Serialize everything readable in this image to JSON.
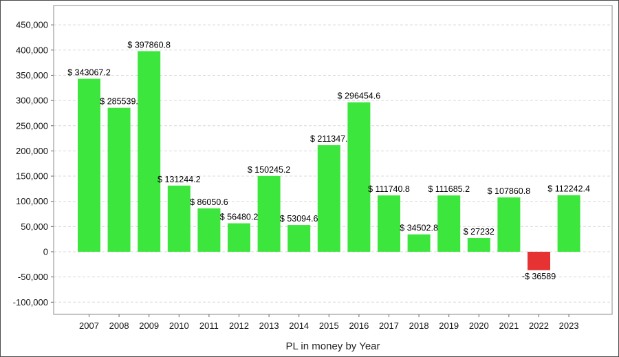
{
  "colors": {
    "positive": "#3ce63c",
    "negative": "#e63232",
    "grid": "#d8d8d8",
    "plot_border": "#888888",
    "background": "#ffffff"
  },
  "chart_data": {
    "type": "bar",
    "xlabel": "PL in money by Year",
    "ylabel": "",
    "ylim": [
      -120000,
      460000
    ],
    "y_ticks": [
      450000,
      400000,
      350000,
      300000,
      250000,
      200000,
      150000,
      100000,
      50000,
      0,
      -50000,
      -100000
    ],
    "y_tick_labels": [
      "450,000",
      "400,000",
      "350,000",
      "300,000",
      "250,000",
      "200,000",
      "150,000",
      "100,000",
      "50,000",
      "0",
      "-50,000",
      "-100,000"
    ],
    "grid": true,
    "categories": [
      "2007",
      "2008",
      "2009",
      "2010",
      "2011",
      "2012",
      "2013",
      "2014",
      "2015",
      "2016",
      "2017",
      "2018",
      "2019",
      "2020",
      "2021",
      "2022",
      "2023"
    ],
    "values": [
      343067.2,
      285539,
      397860.8,
      131244.2,
      86050.6,
      56480.2,
      150245.2,
      53094.6,
      211347,
      296454.6,
      111740.8,
      34502.8,
      111685.2,
      27232,
      107860.8,
      -36589,
      112242.4
    ],
    "data_labels": [
      "$ 343067.2",
      "$ 285539.",
      "$ 397860.8",
      "$ 131244.2",
      "$ 86050.6",
      "$ 56480.2",
      "$ 150245.2",
      "$ 53094.6",
      "$ 211347.",
      "$ 296454.6",
      "$ 111740.8",
      "$ 34502.8",
      "$ 111685.2",
      "$ 27232",
      "$ 107860.8",
      "-$ 36589",
      "$ 112242.4"
    ]
  }
}
